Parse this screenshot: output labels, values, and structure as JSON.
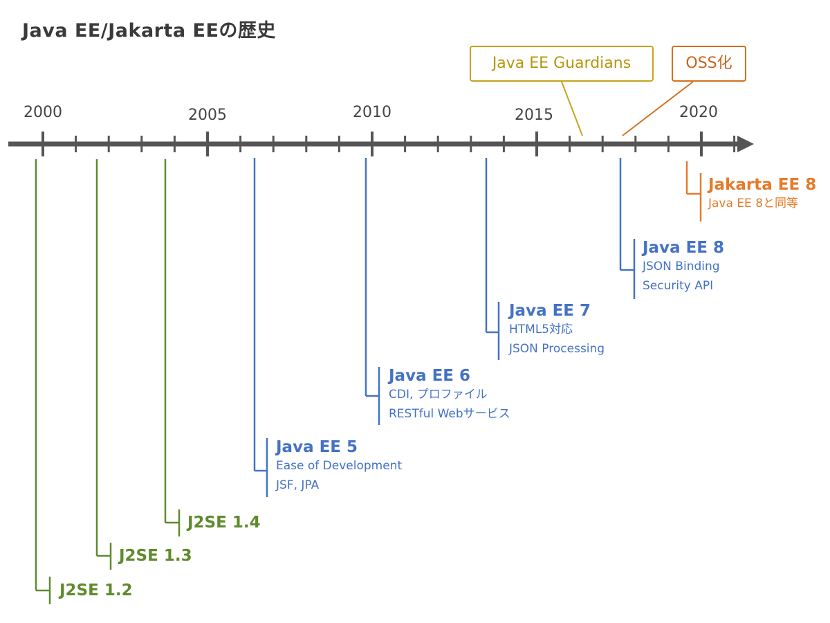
{
  "title": "Java EE/Jakarta EEの歴史",
  "axis": {
    "years": [
      "2000",
      "2005",
      "2010",
      "2015",
      "2020"
    ]
  },
  "callouts": {
    "guardians": "Java EE Guardians",
    "oss": "OSS化"
  },
  "releases": {
    "j2se_12": {
      "title": "J2SE 1.2"
    },
    "j2se_13": {
      "title": "J2SE 1.3"
    },
    "j2se_14": {
      "title": "J2SE 1.4"
    },
    "javaee5": {
      "title": "Java EE 5",
      "lines": [
        "Ease of Development",
        "JSF, JPA"
      ]
    },
    "javaee6": {
      "title": "Java EE 6",
      "lines": [
        "CDI, プロファイル",
        "RESTful Webサービス"
      ]
    },
    "javaee7": {
      "title": "Java EE 7",
      "lines": [
        "HTML5対応",
        "JSON Processing"
      ]
    },
    "javaee8": {
      "title": "Java EE 8",
      "lines": [
        "JSON Binding",
        "Security API"
      ]
    },
    "jakartaee8": {
      "title": "Jakarta EE 8",
      "lines": [
        "Java EE 8と同等"
      ]
    }
  },
  "colors": {
    "axis": "#555555",
    "j2se": "#5f8a2e",
    "javaee": "#4472c4",
    "jakarta": "#e57a2a",
    "guardians": "#c6a41a"
  }
}
